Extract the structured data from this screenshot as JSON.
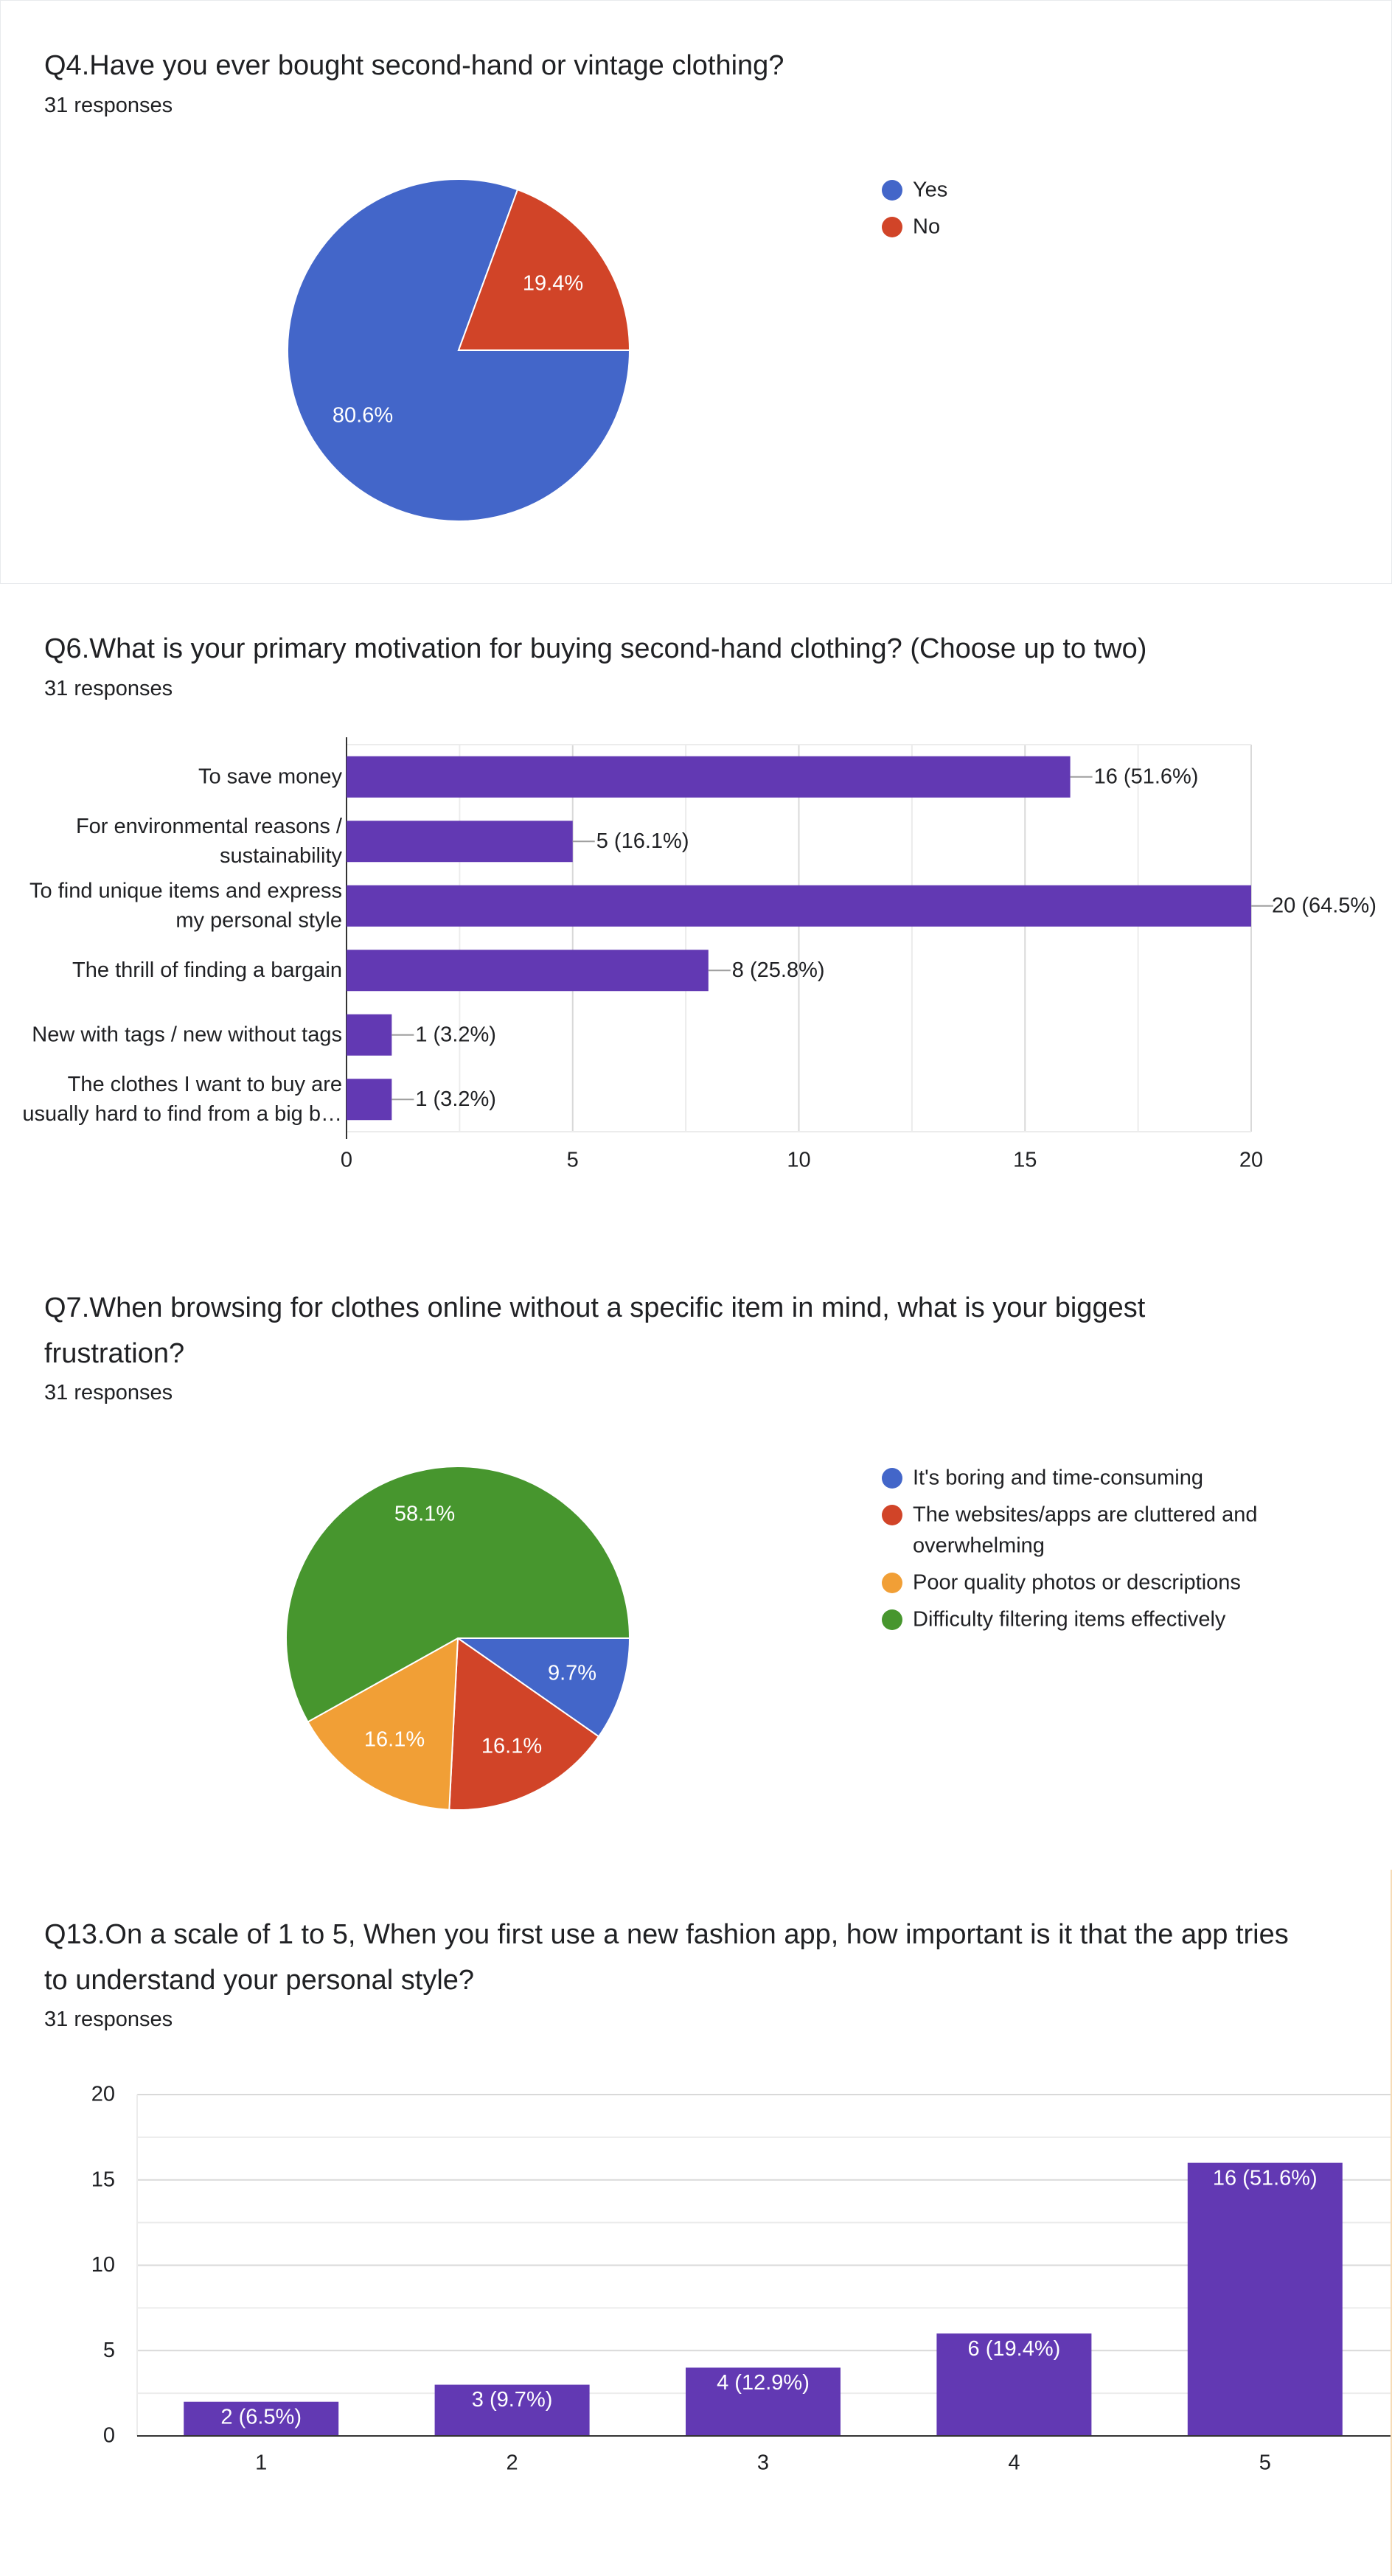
{
  "q4": {
    "title": "Q4.Have you ever bought second-hand or vintage clothing?",
    "responses": "31 responses"
  },
  "q6": {
    "title": "Q6.What is your primary motivation for buying second-hand clothing? (Choose up to two)",
    "responses": "31 responses"
  },
  "q7": {
    "title_line1": "Q7.When browsing for clothes online without a specific item in mind, what is your biggest",
    "title_line2": "frustration?",
    "responses": "31 responses"
  },
  "q13": {
    "title_line1": "Q13.On a scale of 1 to 5, When you first use a new fashion app, how important is it that the app tries",
    "title_line2": "to understand your personal style?",
    "responses": "31 responses"
  },
  "chart_data": [
    {
      "id": "q4",
      "type": "pie",
      "labels": [
        "Yes",
        "No"
      ],
      "values": [
        80.6,
        19.4
      ],
      "slice_labels": [
        "80.6%",
        "19.4%"
      ],
      "colors": [
        "#4366c9",
        "#d14428"
      ],
      "legend": "right"
    },
    {
      "id": "q6",
      "type": "bar",
      "orientation": "horizontal",
      "categories": [
        [
          "To save money"
        ],
        [
          "For environmental reasons /",
          "sustainability"
        ],
        [
          "To find unique items and express",
          "my personal style"
        ],
        [
          "The thrill of finding a bargain"
        ],
        [
          "New with tags / new without tags"
        ],
        [
          "The clothes I want to buy are",
          "usually hard to find from a big b…"
        ]
      ],
      "values": [
        16,
        5,
        20,
        8,
        1,
        1
      ],
      "data_labels": [
        "16 (51.6%)",
        "5 (16.1%)",
        "20 (64.5%)",
        "8 (25.8%)",
        "1 (3.2%)",
        "1 (3.2%)"
      ],
      "xlim": [
        0,
        20
      ],
      "xticks": [
        "0",
        "5",
        "10",
        "15",
        "20"
      ],
      "color": "#6239b3",
      "grid": true
    },
    {
      "id": "q7",
      "type": "pie",
      "labels": [
        [
          "It's boring and time-consuming"
        ],
        [
          "The websites/apps are cluttered and",
          "overwhelming"
        ],
        [
          "Poor quality photos or descriptions"
        ],
        [
          "Difficulty filtering items effectively"
        ]
      ],
      "values": [
        9.7,
        16.1,
        16.1,
        58.1
      ],
      "slice_labels": [
        "9.7%",
        "16.1%",
        "16.1%",
        "58.1%"
      ],
      "colors": [
        "#4366c9",
        "#d14428",
        "#f19f36",
        "#47962e"
      ],
      "legend": "right"
    },
    {
      "id": "q13",
      "type": "bar",
      "orientation": "vertical",
      "categories": [
        "1",
        "2",
        "3",
        "4",
        "5"
      ],
      "values": [
        2,
        3,
        4,
        6,
        16
      ],
      "data_labels": [
        "2 (6.5%)",
        "3 (9.7%)",
        "4 (12.9%)",
        "6 (19.4%)",
        "16 (51.6%)"
      ],
      "ylim": [
        0,
        20
      ],
      "yticks": [
        "0",
        "5",
        "10",
        "15",
        "20"
      ],
      "color": "#6239b3",
      "grid": true
    }
  ]
}
